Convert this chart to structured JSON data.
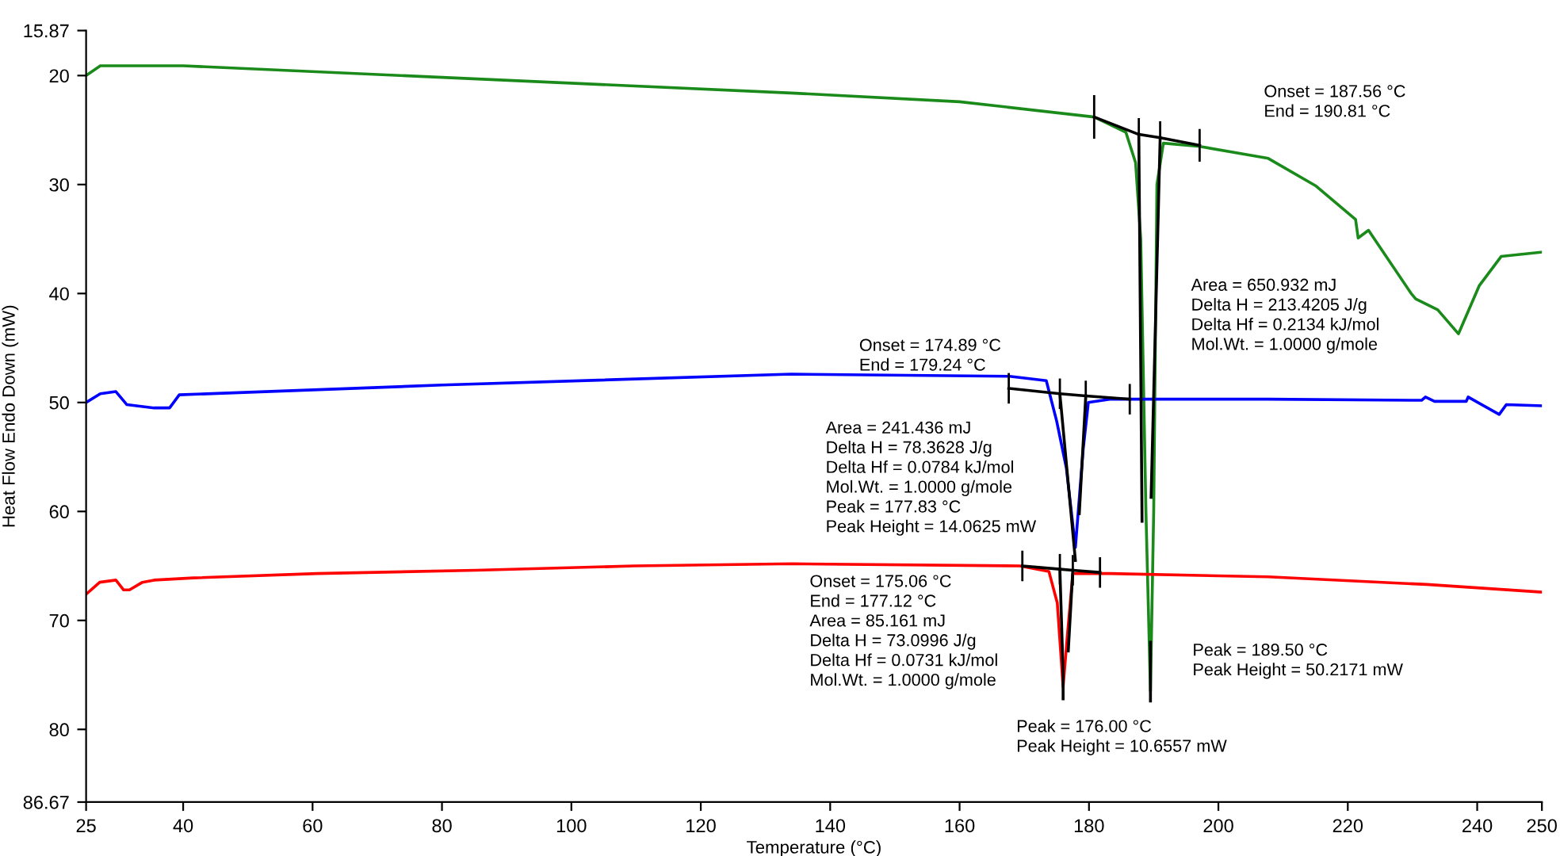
{
  "chart_data": {
    "type": "line",
    "xlabel": "Temperature (°C)",
    "ylabel": "Heat Flow Endo Down (mW)",
    "xlim": [
      25,
      250
    ],
    "xticks": [
      25,
      40,
      60,
      80,
      100,
      120,
      140,
      160,
      180,
      200,
      220,
      240,
      250
    ],
    "ylim": [
      86.67,
      15.87
    ],
    "yticks": [
      15.87,
      20,
      30,
      40,
      50,
      60,
      70,
      80,
      86.67
    ],
    "grid": false,
    "legend": false,
    "marker": "none",
    "line_style": "solid",
    "series": [
      {
        "color": "#1a8a1a",
        "x": [
          25,
          27.2,
          40,
          134,
          160,
          180.8,
          185.7,
          187.2,
          188,
          188.8,
          189.5,
          190,
          190.5,
          191.5,
          197.1,
          207.7,
          215,
          221.2,
          221.6,
          223.2,
          229.8,
          230.5,
          233.9,
          237.1,
          240.3,
          243.7,
          250
        ],
        "values": [
          20,
          19.1,
          19.1,
          21.6,
          22.4,
          23.8,
          25.2,
          28,
          35,
          60,
          76.5,
          60,
          30,
          26.2,
          26.5,
          27.6,
          30.1,
          33.2,
          34.9,
          34.2,
          40,
          40.5,
          41.5,
          43.7,
          39.3,
          36.6,
          36.2
        ]
      },
      {
        "color": "#0000ff",
        "x": [
          25,
          27.2,
          29.6,
          31.3,
          35.5,
          37.9,
          39.4,
          80,
          134,
          167.7,
          173.4,
          175,
          176.5,
          177.9,
          179.1,
          179.9,
          183.2,
          207.7,
          231.4,
          232,
          233.4,
          238.3,
          238.6,
          243.4,
          244.5,
          250
        ],
        "values": [
          50,
          49.2,
          49,
          50.2,
          50.5,
          50.5,
          49.3,
          48.4,
          47.4,
          47.6,
          48,
          51.7,
          56,
          63.3,
          54.3,
          50,
          49.7,
          49.7,
          49.8,
          49.5,
          49.9,
          49.9,
          49.5,
          51.1,
          50.2,
          50.3
        ]
      },
      {
        "color": "#ff0000",
        "x": [
          25,
          27.1,
          29.6,
          30.8,
          31.7,
          33.7,
          35.5,
          41.6,
          60.7,
          85.2,
          109.7,
          134.2,
          169.3,
          173.8,
          175.1,
          176,
          176.6,
          177.5,
          183.2,
          207.7,
          232.2,
          250
        ],
        "values": [
          67.6,
          66.5,
          66.3,
          67.2,
          67.2,
          66.5,
          66.3,
          66.1,
          65.7,
          65.4,
          65,
          64.8,
          65,
          65.5,
          68.4,
          76.1,
          71.8,
          65.7,
          65.7,
          66,
          66.7,
          67.4
        ]
      },
      {
        "color": "#000000",
        "x": [
          180.8,
          187.7,
          191,
          197.1
        ],
        "values": [
          23.8,
          25.4,
          25.7,
          26.4
        ],
        "errors": [
          2,
          1.5,
          1.5,
          1.5
        ]
      },
      {
        "color": "#000000",
        "x": [
          187.7,
          188.2,
          null,
          191,
          189.6,
          null,
          189.5,
          189.5
        ],
        "values": [
          25.4,
          60.9,
          null,
          25.7,
          58.7,
          null,
          72,
          77.4
        ]
      },
      {
        "color": "#000000",
        "x": [
          167.6,
          175.5,
          179.5,
          186.3
        ],
        "values": [
          48.7,
          49.2,
          49.4,
          49.7
        ],
        "errors": [
          1.4,
          1.4,
          1.4,
          1.4
        ]
      },
      {
        "color": "#000000",
        "x": [
          175.5,
          177.9,
          null,
          179.5,
          178.5
        ],
        "values": [
          49.2,
          64.5,
          null,
          49.4,
          60.2
        ]
      },
      {
        "color": "#000000",
        "x": [
          169.7,
          175.5,
          177.5,
          181.7
        ],
        "values": [
          65,
          65.3,
          65.4,
          65.6
        ],
        "errors": [
          1.4,
          1.4,
          1.4,
          1.4
        ]
      },
      {
        "color": "#000000",
        "x": [
          175.5,
          176,
          null,
          177.5,
          176.8,
          null,
          176,
          176
        ],
        "values": [
          65.3,
          74.8,
          null,
          65.4,
          72.8,
          null,
          74.8,
          77.2
        ]
      }
    ],
    "annotations": [
      "Onset = 187.56 °C\nEnd = 190.81 °C",
      "Area = 650.932 mJ\nDelta H = 213.4205 J/g\nDelta Hf = 0.2134 kJ/mol\nMol.Wt. = 1.0000 g/mole",
      "Onset = 174.89 °C\nEnd = 179.24 °C",
      "Area = 241.436 mJ\nDelta H = 78.3628 J/g\nDelta Hf = 0.0784 kJ/mol\nMol.Wt. = 1.0000 g/mole\nPeak = 177.83 °C\nPeak Height = 14.0625 mW",
      "Onset = 175.06 °C\nEnd = 177.12 °C\nArea = 85.161 mJ\nDelta H = 73.0996 J/g\nDelta Hf = 0.0731 kJ/mol\nMol.Wt. = 1.0000 g/mole",
      "Peak = 189.50 °C\nPeak Height = 50.2171 mW",
      "Peak = 176.00 °C\nPeak Height = 10.6557 mW"
    ]
  }
}
